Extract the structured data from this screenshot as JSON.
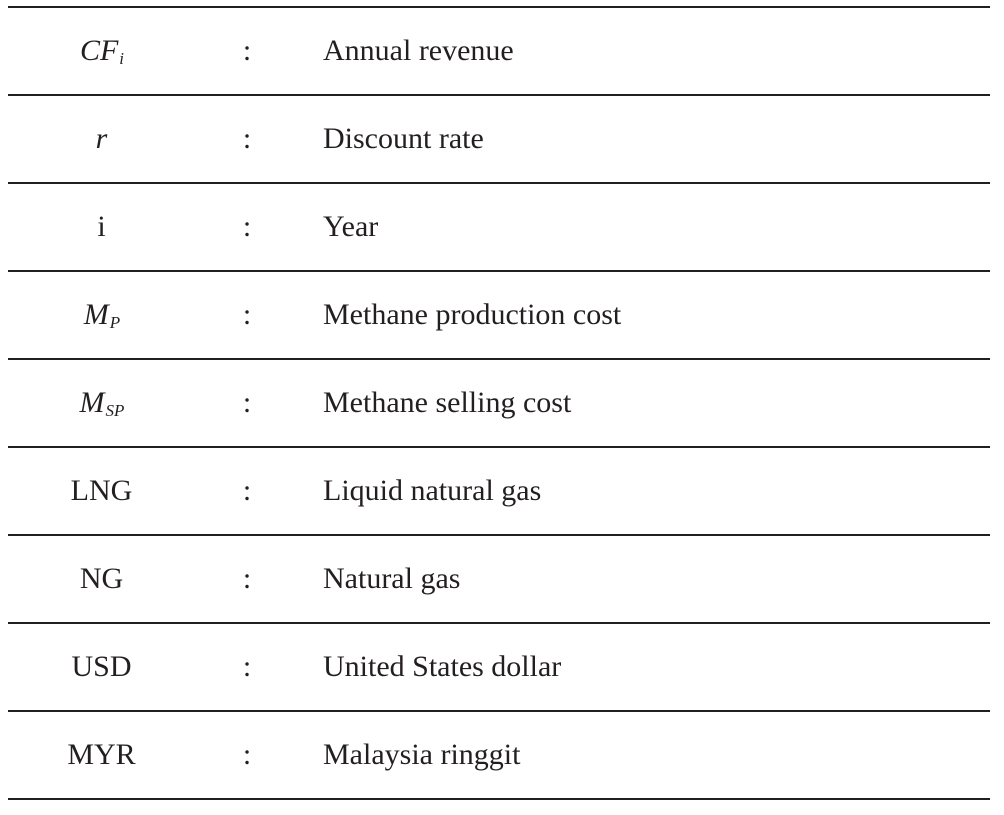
{
  "nomenclature": {
    "separator": ":",
    "rows": [
      {
        "symbol": "CF",
        "subscript": "i",
        "italic": true,
        "description": "Annual revenue"
      },
      {
        "symbol": "r",
        "subscript": "",
        "italic": true,
        "description": "Discount rate"
      },
      {
        "symbol": "i",
        "subscript": "",
        "italic": false,
        "description": "Year"
      },
      {
        "symbol": "M",
        "subscript": "P",
        "italic": true,
        "description": "Methane production cost"
      },
      {
        "symbol": "M",
        "subscript": "SP",
        "italic": true,
        "description": "Methane selling cost"
      },
      {
        "symbol": "LNG",
        "subscript": "",
        "italic": false,
        "description": "Liquid natural gas"
      },
      {
        "symbol": "NG",
        "subscript": "",
        "italic": false,
        "description": "Natural gas"
      },
      {
        "symbol": "USD",
        "subscript": "",
        "italic": false,
        "description": "United States dollar"
      },
      {
        "symbol": "MYR",
        "subscript": "",
        "italic": false,
        "description": "Malaysia ringgit"
      }
    ]
  }
}
